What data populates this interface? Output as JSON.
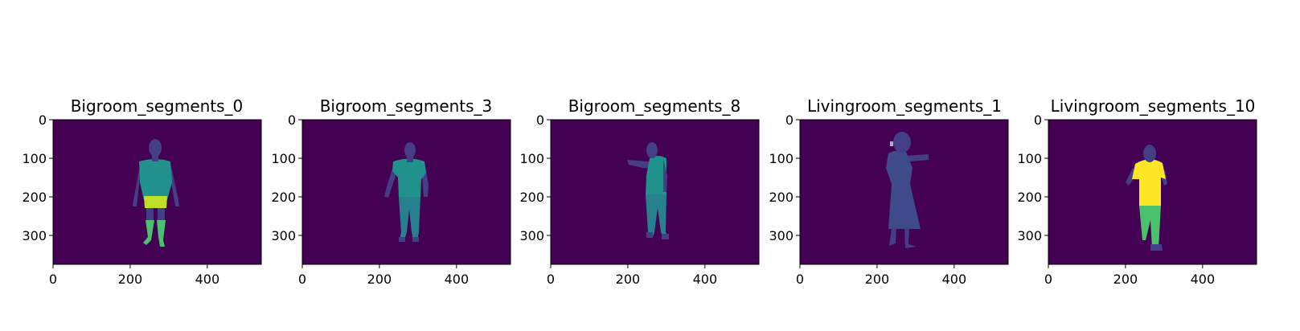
{
  "colors": {
    "background": "#440154",
    "head_purple": "#433e85",
    "body_blue": "#3e4a89",
    "teal": "#21918c",
    "teal_dark": "#27808e",
    "lime": "#bddf26",
    "green": "#4ac16d",
    "yellow": "#fde725"
  },
  "chart_data": [
    {
      "type": "heatmap",
      "title": "Bigroom_segments_0",
      "xlim": [
        0,
        540
      ],
      "ylim": [
        375,
        0
      ],
      "xticks": [
        0,
        200,
        400
      ],
      "yticks": [
        0,
        100,
        200,
        300
      ],
      "segments": [
        {
          "part": "head-arms-upper-legs",
          "color": "#433e85"
        },
        {
          "part": "shirt",
          "color": "#21918c"
        },
        {
          "part": "shorts",
          "color": "#bddf26"
        },
        {
          "part": "socks-shoes",
          "color": "#4ac16d"
        }
      ]
    },
    {
      "type": "heatmap",
      "title": "Bigroom_segments_3",
      "xlim": [
        0,
        540
      ],
      "ylim": [
        375,
        0
      ],
      "xticks": [
        0,
        200,
        400
      ],
      "yticks": [
        0,
        100,
        200,
        300
      ],
      "segments": [
        {
          "part": "head-arms",
          "color": "#433e85"
        },
        {
          "part": "shirt",
          "color": "#21918c"
        },
        {
          "part": "pants",
          "color": "#27808e"
        }
      ]
    },
    {
      "type": "heatmap",
      "title": "Bigroom_segments_8",
      "xlim": [
        0,
        540
      ],
      "ylim": [
        375,
        0
      ],
      "xticks": [
        0,
        200,
        400
      ],
      "yticks": [
        0,
        100,
        200,
        300
      ],
      "segments": [
        {
          "part": "head-arms",
          "color": "#433e85"
        },
        {
          "part": "shirt",
          "color": "#21918c"
        },
        {
          "part": "pants",
          "color": "#27808e"
        }
      ]
    },
    {
      "type": "heatmap",
      "title": "Livingroom_segments_1",
      "xlim": [
        0,
        540
      ],
      "ylim": [
        375,
        0
      ],
      "xticks": [
        0,
        200,
        400
      ],
      "yticks": [
        0,
        100,
        200,
        300
      ],
      "segments": [
        {
          "part": "head-arms",
          "color": "#433e85"
        },
        {
          "part": "dress",
          "color": "#3e4a89"
        }
      ]
    },
    {
      "type": "heatmap",
      "title": "Livingroom_segments_10",
      "xlim": [
        0,
        540
      ],
      "ylim": [
        375,
        0
      ],
      "xticks": [
        0,
        200,
        400
      ],
      "yticks": [
        0,
        100,
        200,
        300
      ],
      "segments": [
        {
          "part": "head-arms",
          "color": "#433e85"
        },
        {
          "part": "shirt",
          "color": "#fde725"
        },
        {
          "part": "pants",
          "color": "#4ac16d"
        }
      ]
    }
  ]
}
